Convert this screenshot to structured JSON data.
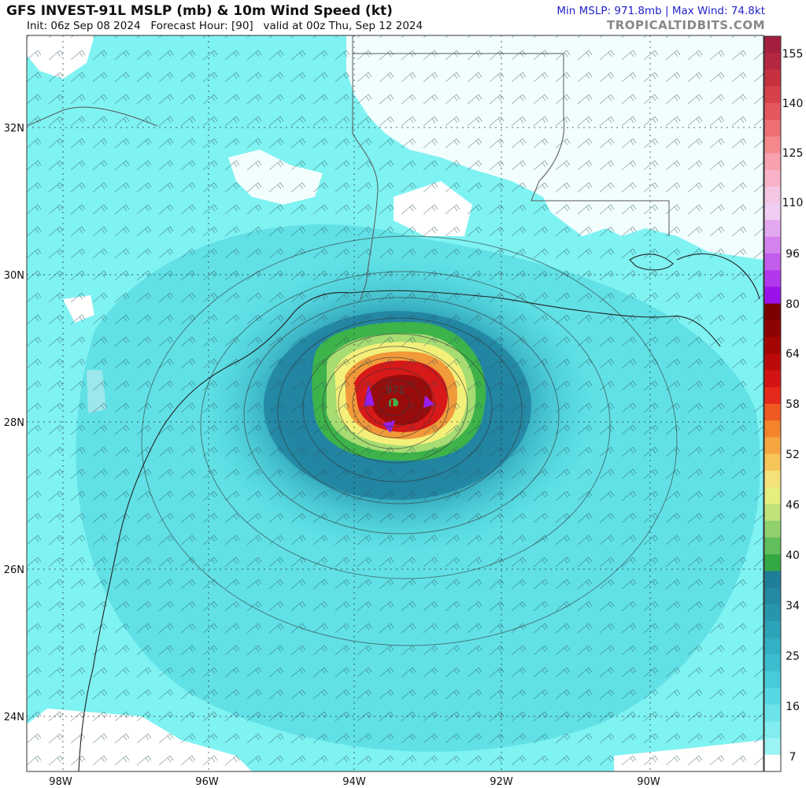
{
  "header": {
    "title": "GFS INVEST-91L MSLP (mb) & 10m Wind Speed (kt)",
    "init": "Init: 06z Sep 08 2024",
    "forecast_hour": "Forecast Hour: [90]",
    "valid": "valid at 00z Thu, Sep 12 2024",
    "stats": "Min MSLP: 971.8mb | Max Wind: 74.8kt",
    "brand": "TROPICALTIDBITS.COM"
  },
  "map": {
    "lon_ticks": [
      "98W",
      "96W",
      "94W",
      "92W",
      "90W"
    ],
    "lat_ticks": [
      "32N",
      "30N",
      "28N",
      "26N",
      "24N"
    ],
    "center_pressure_label": "971",
    "low_symbol": "L",
    "colors": {
      "ocean_light": "#7ff2f2",
      "ocean_mid": "#49d3dc",
      "ocean_dark": "#2d9fb5",
      "ocean_deep": "#1f7d9c",
      "land_white": "#ffffff",
      "ts_green": "#3db34a",
      "yellow": "#f3f07a",
      "orange": "#f19a3a",
      "red": "#d71919",
      "dark_red": "#8d0b0b",
      "purple": "#9b1ef0"
    }
  },
  "colorbar": {
    "labels": [
      "155",
      "140",
      "125",
      "110",
      "96",
      "80",
      "64",
      "58",
      "52",
      "46",
      "40",
      "34",
      "25",
      "16",
      "7"
    ],
    "segments": [
      "#a41e3f",
      "#b52641",
      "#c7303f",
      "#d7414a",
      "#e5565d",
      "#ee6f74",
      "#f5888c",
      "#f7a0ae",
      "#f8b3c8",
      "#f5c6e3",
      "#f0cdf2",
      "#e3a8f0",
      "#d483ee",
      "#c25ded",
      "#b138ec",
      "#9b11ea",
      "#7a0000",
      "#8e0303",
      "#a40606",
      "#bc0a0a",
      "#d41414",
      "#e42a1a",
      "#ef5a22",
      "#f3842c",
      "#f6a640",
      "#f6c55a",
      "#f5e179",
      "#e6ee7e",
      "#bfe27a",
      "#90d06d",
      "#60bf5c",
      "#35a846",
      "#1f7f98",
      "#238aa2",
      "#2796ad",
      "#2ca3b8",
      "#33b0c3",
      "#3bbdcf",
      "#47cbd9",
      "#58d8e3",
      "#6ce3ea",
      "#82ecf0",
      "#9bf3f4",
      "#ffffff"
    ]
  }
}
